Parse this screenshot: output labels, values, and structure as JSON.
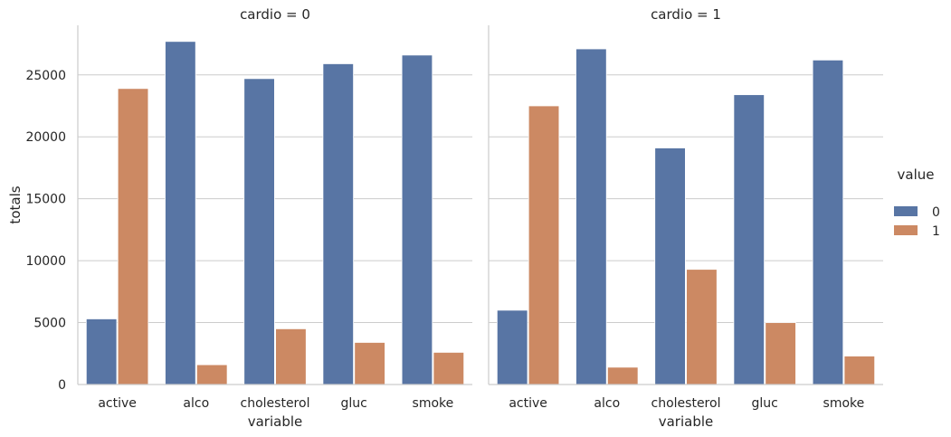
{
  "chart_data": {
    "type": "bar",
    "facet_variable": "cardio",
    "panels": [
      {
        "title": "cardio = 0",
        "categories": [
          "active",
          "alco",
          "cholesterol",
          "gluc",
          "smoke"
        ],
        "series": [
          {
            "name": "0",
            "values": [
              5300,
              27700,
              24700,
              25900,
              26600
            ]
          },
          {
            "name": "1",
            "values": [
              23900,
              1600,
              4500,
              3400,
              2600
            ]
          }
        ]
      },
      {
        "title": "cardio = 1",
        "categories": [
          "active",
          "alco",
          "cholesterol",
          "gluc",
          "smoke"
        ],
        "series": [
          {
            "name": "0",
            "values": [
              6000,
              27100,
              19100,
              23400,
              26200
            ]
          },
          {
            "name": "1",
            "values": [
              22500,
              1400,
              9300,
              5000,
              2300
            ]
          }
        ]
      }
    ],
    "xlabel": "variable",
    "ylabel": "totals",
    "yticks": [
      0,
      5000,
      10000,
      15000,
      20000,
      25000
    ],
    "ylim": [
      0,
      29000
    ],
    "grid": true,
    "legend": {
      "title": "value",
      "placement": "right",
      "entries": [
        {
          "label": "0",
          "color": "#5875a4"
        },
        {
          "label": "1",
          "color": "#cc8963"
        }
      ]
    }
  }
}
